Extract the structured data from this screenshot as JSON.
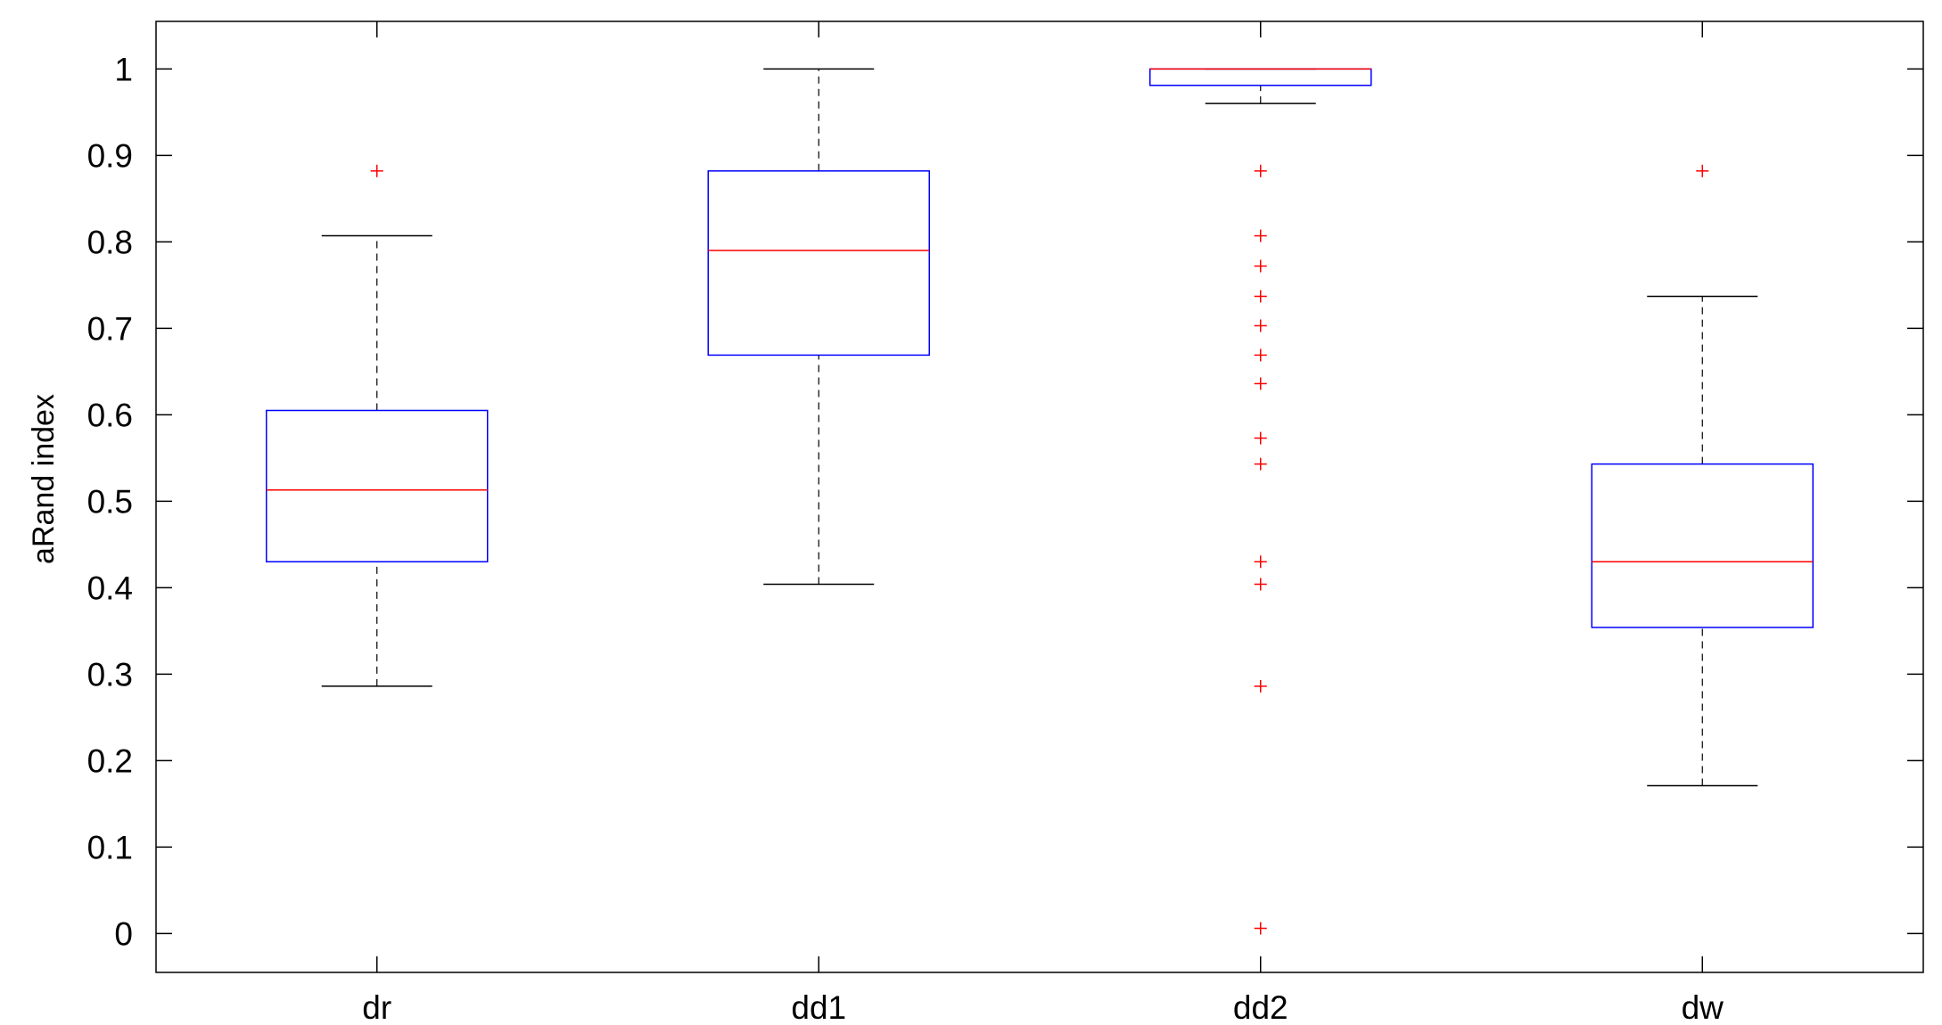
{
  "chart_data": {
    "type": "box",
    "title": "",
    "xlabel": "",
    "ylabel": "aRand index",
    "ylim": [
      -0.045,
      1.055
    ],
    "yticks": [
      0,
      0.1,
      0.2,
      0.3,
      0.4,
      0.5,
      0.6,
      0.7,
      0.8,
      0.9,
      1
    ],
    "ytick_labels": [
      "0",
      "0.1",
      "0.2",
      "0.3",
      "0.4",
      "0.5",
      "0.6",
      "0.7",
      "0.8",
      "0.9",
      "1"
    ],
    "categories": [
      "dr",
      "dd1",
      "dd2",
      "dw"
    ],
    "boxes": [
      {
        "category": "dr",
        "whisker_low": 0.286,
        "q1": 0.43,
        "median": 0.513,
        "q3": 0.605,
        "whisker_high": 0.807,
        "outliers": [
          0.882
        ]
      },
      {
        "category": "dd1",
        "whisker_low": 0.404,
        "q1": 0.669,
        "median": 0.79,
        "q3": 0.882,
        "whisker_high": 1.0,
        "outliers": []
      },
      {
        "category": "dd2",
        "whisker_low": 0.96,
        "q1": 0.981,
        "median": 1.0,
        "q3": 1.0,
        "whisker_high": 1.0,
        "outliers": [
          0.882,
          0.807,
          0.772,
          0.737,
          0.703,
          0.669,
          0.636,
          0.573,
          0.543,
          0.43,
          0.404,
          0.286,
          0.006
        ]
      },
      {
        "category": "dw",
        "whisker_low": 0.171,
        "q1": 0.354,
        "median": 0.43,
        "q3": 0.543,
        "whisker_high": 0.737,
        "outliers": [
          0.882
        ]
      }
    ],
    "grid": false,
    "legend": "none",
    "colors": {
      "box": "#0000ff",
      "median": "#ff0000",
      "outlier": "#ff0000",
      "whisker": "#000000",
      "axes": "#000000"
    }
  }
}
